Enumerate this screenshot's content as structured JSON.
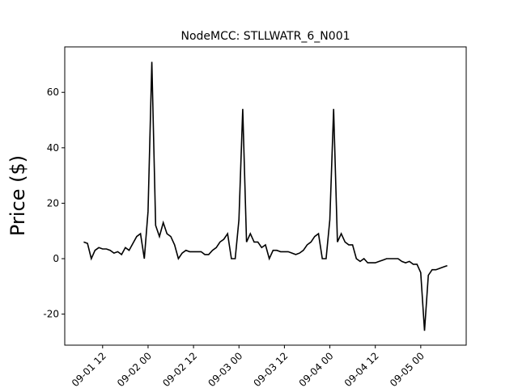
{
  "chart_data": {
    "type": "line",
    "title": "NodeMCC: STLLWATR_6_N001",
    "y_label": "Price ($)",
    "x": [
      "09-01 07",
      "09-01 08",
      "09-01 09",
      "09-01 10",
      "09-01 11",
      "09-01 12",
      "09-01 13",
      "09-01 14",
      "09-01 15",
      "09-01 16",
      "09-01 17",
      "09-01 18",
      "09-01 19",
      "09-01 20",
      "09-01 21",
      "09-01 22",
      "09-01 23",
      "09-02 00",
      "09-02 01",
      "09-02 02",
      "09-02 03",
      "09-02 04",
      "09-02 05",
      "09-02 06",
      "09-02 07",
      "09-02 08",
      "09-02 09",
      "09-02 10",
      "09-02 11",
      "09-02 12",
      "09-02 13",
      "09-02 14",
      "09-02 15",
      "09-02 16",
      "09-02 17",
      "09-02 18",
      "09-02 19",
      "09-02 20",
      "09-02 21",
      "09-02 22",
      "09-02 23",
      "09-03 00",
      "09-03 01",
      "09-03 02",
      "09-03 03",
      "09-03 04",
      "09-03 05",
      "09-03 06",
      "09-03 07",
      "09-03 08",
      "09-03 09",
      "09-03 10",
      "09-03 11",
      "09-03 12",
      "09-03 13",
      "09-03 14",
      "09-03 15",
      "09-03 16",
      "09-03 17",
      "09-03 18",
      "09-03 19",
      "09-03 20",
      "09-03 21",
      "09-03 22",
      "09-03 23",
      "09-04 00",
      "09-04 01",
      "09-04 02",
      "09-04 03",
      "09-04 04",
      "09-04 05",
      "09-04 06",
      "09-04 07",
      "09-04 08",
      "09-04 09",
      "09-04 10",
      "09-04 11",
      "09-04 12",
      "09-04 13",
      "09-04 14",
      "09-04 15",
      "09-04 16",
      "09-04 17",
      "09-04 18",
      "09-04 19",
      "09-04 20",
      "09-04 21",
      "09-04 22",
      "09-04 23",
      "09-05 00",
      "09-05 01",
      "09-05 02",
      "09-05 03",
      "09-05 04",
      "09-05 05",
      "09-05 06",
      "09-05 07"
    ],
    "series": [
      {
        "name": "STLLWATR_6_N001",
        "color": "#000000",
        "values": [
          6,
          5.5,
          0,
          3,
          4,
          3.5,
          3.5,
          3,
          2,
          2.5,
          1.5,
          4,
          3,
          5.5,
          8,
          9,
          0,
          17,
          71,
          12,
          8,
          13,
          9,
          8,
          5,
          0,
          2,
          3,
          2.5,
          2.5,
          2.5,
          2.5,
          1.5,
          1.5,
          3,
          4,
          6,
          7,
          9,
          0,
          0,
          14,
          54,
          6,
          9,
          6,
          6,
          4,
          5,
          0,
          3,
          3,
          2.5,
          2.5,
          2.5,
          2,
          1.5,
          2,
          3,
          5,
          6,
          8,
          9,
          0,
          0,
          14,
          54,
          6,
          9,
          6,
          5,
          5,
          0,
          -1,
          0,
          -1.5,
          -1.5,
          -1.5,
          -1,
          -0.5,
          0,
          0,
          0,
          0,
          -1,
          -1.5,
          -1,
          -2,
          -2,
          -5,
          -26,
          -6,
          -4,
          -4,
          -3.5,
          -3,
          -2.5
        ]
      }
    ],
    "xlim": [
      "09-01 02",
      "09-05 12"
    ],
    "xticks": [
      "09-01 12",
      "09-02 00",
      "09-02 12",
      "09-03 00",
      "09-03 12",
      "09-04 00",
      "09-04 12",
      "09-05 00"
    ],
    "ylim": [
      -31.2,
      76.4
    ],
    "yticks": [
      -20,
      0,
      20,
      40,
      60
    ],
    "grid": false
  }
}
